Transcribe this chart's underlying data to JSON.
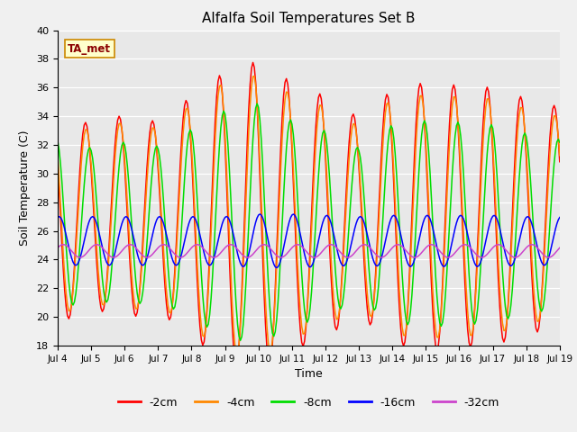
{
  "title": "Alfalfa Soil Temperatures Set B",
  "xlabel": "Time",
  "ylabel": "Soil Temperature (C)",
  "ylim": [
    18,
    40
  ],
  "annotation": "TA_met",
  "plot_bg_color": "#e8e8e8",
  "fig_bg_color": "#f0f0f0",
  "line_colors": {
    "-2cm": "#ff0000",
    "-4cm": "#ff8800",
    "-8cm": "#00dd00",
    "-16cm": "#0000ff",
    "-32cm": "#cc44cc"
  },
  "legend_labels": [
    "-2cm",
    "-4cm",
    "-8cm",
    "-16cm",
    "-32cm"
  ],
  "xtick_labels": [
    "Jul 4",
    "Jul 5",
    "Jul 6",
    "Jul 7",
    "Jul 8",
    "Jul 9",
    "Jul 10",
    "Jul 11",
    "Jul 12",
    "Jul 13",
    "Jul 14",
    "Jul 15",
    "Jul 16",
    "Jul 17",
    "Jul 18",
    "Jul 19"
  ],
  "ytick_labels": [
    "18",
    "20",
    "22",
    "24",
    "26",
    "28",
    "30",
    "32",
    "34",
    "36",
    "38",
    "40"
  ],
  "ytick_values": [
    18,
    20,
    22,
    24,
    26,
    28,
    30,
    32,
    34,
    36,
    38,
    40
  ],
  "cycles": {
    "-2cm": {
      "mean": 27.0,
      "amp": 7.5,
      "phase": 14.0,
      "period": 24
    },
    "-4cm": {
      "mean": 27.0,
      "amp": 7.0,
      "phase": 14.5,
      "period": 24
    },
    "-8cm": {
      "mean": 26.5,
      "amp": 6.0,
      "phase": 17.0,
      "period": 24
    },
    "-16cm": {
      "mean": 25.3,
      "amp": 1.7,
      "phase": 19.0,
      "period": 24
    },
    "-32cm": {
      "mean": 24.6,
      "amp": 0.45,
      "phase": 22.0,
      "period": 24
    }
  },
  "amp_envelope": {
    "-2cm": [
      1.0,
      0.85,
      0.95,
      0.88,
      1.12,
      1.35,
      1.45,
      1.25,
      1.12,
      0.92,
      1.18,
      1.25,
      1.22,
      1.2,
      1.1,
      1.02
    ],
    "-4cm": [
      1.0,
      0.85,
      0.95,
      0.88,
      1.12,
      1.35,
      1.42,
      1.22,
      1.1,
      0.9,
      1.18,
      1.22,
      1.2,
      1.18,
      1.08,
      1.0
    ],
    "-8cm": [
      1.0,
      0.88,
      0.95,
      0.9,
      1.1,
      1.32,
      1.4,
      1.2,
      1.08,
      0.88,
      1.15,
      1.2,
      1.18,
      1.15,
      1.05,
      0.98
    ],
    "-16cm": [
      1.0,
      1.0,
      1.0,
      1.0,
      1.0,
      1.0,
      1.1,
      1.1,
      1.05,
      1.0,
      1.05,
      1.05,
      1.05,
      1.05,
      1.0,
      1.0
    ],
    "-32cm": [
      1.0,
      1.0,
      1.0,
      1.0,
      1.0,
      1.0,
      1.0,
      1.0,
      1.0,
      1.0,
      1.0,
      1.0,
      1.0,
      1.0,
      1.0,
      1.0
    ]
  }
}
